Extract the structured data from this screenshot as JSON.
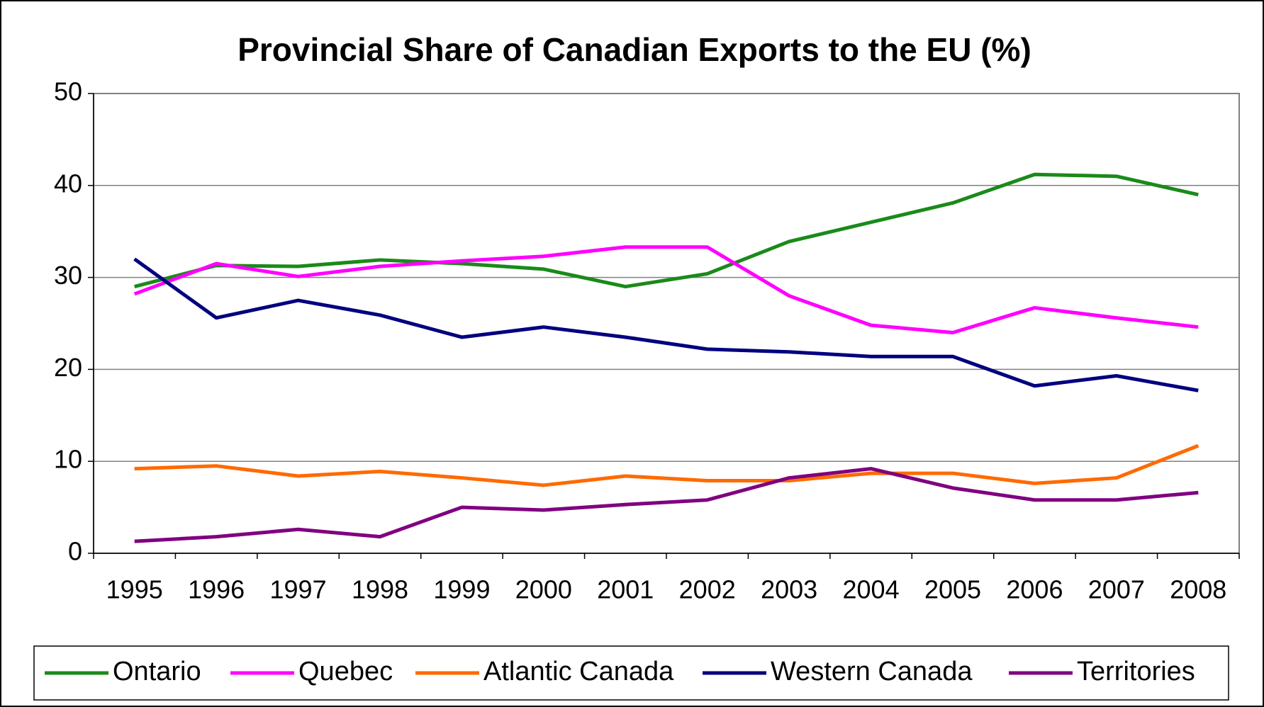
{
  "chart_data": {
    "type": "line",
    "title": "Provincial Share of Canadian Exports to the EU (%)",
    "categories": [
      "1995",
      "1996",
      "1997",
      "1998",
      "1999",
      "2000",
      "2001",
      "2002",
      "2003",
      "2004",
      "2005",
      "2006",
      "2007",
      "2008"
    ],
    "series": [
      {
        "name": "Ontario",
        "color": "#1a8a1a",
        "values": [
          29.0,
          31.3,
          31.2,
          31.9,
          31.5,
          30.9,
          29.0,
          30.4,
          33.9,
          36.0,
          38.1,
          41.2,
          41.0,
          39.0
        ]
      },
      {
        "name": "Quebec",
        "color": "#ff00ff",
        "values": [
          28.2,
          31.5,
          30.1,
          31.2,
          31.8,
          32.3,
          33.3,
          33.3,
          28.0,
          24.8,
          24.0,
          26.7,
          25.6,
          24.6
        ]
      },
      {
        "name": "Atlantic Canada",
        "color": "#ff6a00",
        "values": [
          9.2,
          9.5,
          8.4,
          8.9,
          8.2,
          7.4,
          8.4,
          7.9,
          7.9,
          8.7,
          8.7,
          7.6,
          8.2,
          11.7
        ]
      },
      {
        "name": "Western Canada",
        "color": "#000080",
        "values": [
          32.0,
          25.6,
          27.5,
          25.9,
          23.5,
          24.6,
          23.5,
          22.2,
          21.9,
          21.4,
          21.4,
          18.2,
          19.3,
          17.7
        ]
      },
      {
        "name": "Territories",
        "color": "#800080",
        "values": [
          1.3,
          1.8,
          2.6,
          1.8,
          5.0,
          4.7,
          5.3,
          5.8,
          8.2,
          9.2,
          7.1,
          5.8,
          5.8,
          6.6
        ]
      }
    ],
    "ylim": [
      0,
      50
    ],
    "yticks": [
      0,
      10,
      20,
      30,
      40,
      50
    ],
    "grid": true,
    "legend": "bottom"
  }
}
